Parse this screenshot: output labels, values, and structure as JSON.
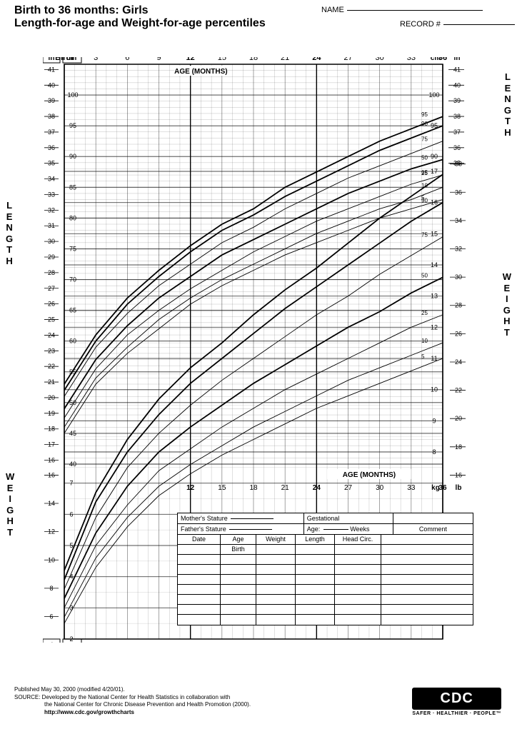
{
  "header": {
    "title1": "Birth to 36 months: Girls",
    "title2": "Length-for-age and Weight-for-age percentiles",
    "name_label": "NAME",
    "record_label": "RECORD #"
  },
  "chart": {
    "type": "growth-percentile",
    "background_color": "#ffffff",
    "grid_color": "#000000",
    "grid_minor_opacity": 0.35,
    "grid_major_width": 1.2,
    "months_label": "AGE (MONTHS)",
    "months_ticks": [
      {
        "v": 0,
        "label": "Birth",
        "bold": true
      },
      {
        "v": 3,
        "label": "3"
      },
      {
        "v": 6,
        "label": "6"
      },
      {
        "v": 9,
        "label": "9"
      },
      {
        "v": 12,
        "label": "12",
        "bold": true
      },
      {
        "v": 15,
        "label": "15"
      },
      {
        "v": 18,
        "label": "18"
      },
      {
        "v": 21,
        "label": "21"
      },
      {
        "v": 24,
        "label": "24",
        "bold": true
      },
      {
        "v": 27,
        "label": "27"
      },
      {
        "v": 30,
        "label": "30"
      },
      {
        "v": 33,
        "label": "33"
      },
      {
        "v": 36,
        "label": "36",
        "bold": true
      }
    ],
    "length_cm": {
      "label": "cm",
      "min": 40,
      "max": 105,
      "major": 5
    },
    "length_in": {
      "label": "in",
      "min": 15,
      "max": 41,
      "step": 1,
      "bold_min": 15
    },
    "weight_kg": {
      "label": "kg",
      "min": 2,
      "max": 17,
      "major": 1
    },
    "weight_lb_left": {
      "label": "lb",
      "min": 4,
      "max": 16,
      "step": 2
    },
    "weight_lb_right": {
      "label": "lb",
      "min": 16,
      "max": 38,
      "step": 2
    },
    "length_right_cm": {
      "min": 90,
      "max": 100,
      "step": 5
    },
    "percentile_labels": [
      "5",
      "10",
      "25",
      "50",
      "75",
      "90",
      "95"
    ],
    "length_curves_cm": {
      "5": [
        45,
        53,
        58,
        62,
        66,
        69,
        71.5,
        74,
        76,
        78,
        80,
        81.5,
        83
      ],
      "10": [
        46,
        54,
        59,
        63.5,
        67,
        70,
        72.5,
        75,
        77.5,
        79.5,
        81.5,
        83,
        85
      ],
      "25": [
        47.5,
        55.5,
        61,
        65,
        68.5,
        71.5,
        74.5,
        77,
        79.5,
        81.5,
        83.5,
        85.5,
        87
      ],
      "50": [
        49,
        57,
        62.5,
        67,
        70.5,
        74,
        76.5,
        79,
        81.5,
        84,
        86,
        88,
        89.5
      ],
      "75": [
        51,
        59,
        64.5,
        69,
        72.5,
        76,
        78.5,
        81.5,
        84,
        86.5,
        88.5,
        90.5,
        92.5
      ],
      "90": [
        52,
        60,
        66,
        70.5,
        74.5,
        78,
        80.5,
        83.5,
        86,
        88.5,
        91,
        93,
        95
      ],
      "95": [
        53,
        61,
        67,
        71.5,
        75.5,
        79,
        81.5,
        85,
        87.5,
        90,
        92.5,
        94.5,
        96.5
      ]
    },
    "weight_curves_kg": {
      "5": [
        2.5,
        4.3,
        5.6,
        6.6,
        7.3,
        7.9,
        8.4,
        8.9,
        9.4,
        9.8,
        10.2,
        10.6,
        11
      ],
      "10": [
        2.7,
        4.6,
        5.9,
        6.9,
        7.6,
        8.2,
        8.8,
        9.3,
        9.8,
        10.3,
        10.7,
        11.1,
        11.5
      ],
      "25": [
        3.0,
        5.0,
        6.3,
        7.4,
        8.1,
        8.8,
        9.4,
        10,
        10.5,
        11,
        11.5,
        12,
        12.4
      ],
      "50": [
        3.3,
        5.4,
        6.9,
        8.0,
        8.8,
        9.5,
        10.2,
        10.8,
        11.4,
        12,
        12.5,
        13.1,
        13.6
      ],
      "75": [
        3.6,
        5.9,
        7.5,
        8.6,
        9.5,
        10.3,
        11,
        11.7,
        12.4,
        13,
        13.7,
        14.3,
        14.9
      ],
      "90": [
        3.9,
        6.4,
        8.0,
        9.2,
        10.2,
        11,
        11.8,
        12.6,
        13.3,
        14,
        14.7,
        15.4,
        16
      ],
      "95": [
        4.2,
        6.7,
        8.4,
        9.7,
        10.7,
        11.5,
        12.4,
        13.2,
        13.9,
        14.7,
        15.5,
        16.2,
        16.9
      ]
    },
    "bold_percentiles": [
      "50",
      "90",
      "95"
    ]
  },
  "data_table": {
    "mother": "Mother's Stature",
    "father": "Father's Stature",
    "gest": "Gestational",
    "age": "Age:",
    "weeks": "Weeks",
    "comment": "Comment",
    "cols": [
      "Date",
      "Age",
      "Weight",
      "Length",
      "Head  Circ."
    ],
    "birth": "Birth",
    "blank_rows": 7
  },
  "side_labels": {
    "length": "LENGTH",
    "weight": "WEIGHT"
  },
  "footer": {
    "pub": "Published May 30, 2000 (modified 4/20/01).",
    "src1": "SOURCE: Developed by the National Center for Health Statistics in collaboration with",
    "src2": "the National Center for Chronic Disease Prevention and Health Promotion (2000).",
    "url": "http://www.cdc.gov/growthcharts"
  },
  "cdc": {
    "logo": "CDC",
    "tag": "SAFER · HEALTHIER · PEOPLE™"
  }
}
